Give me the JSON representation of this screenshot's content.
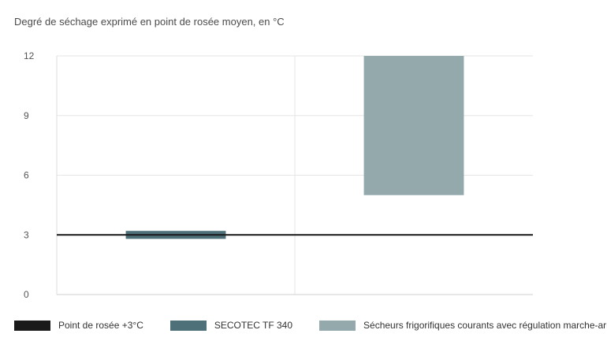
{
  "chart_data": {
    "type": "bar",
    "title": "Degré de séchage exprimé en point de rosée moyen, en °C",
    "xlabel": "",
    "ylabel": "",
    "ylim": [
      0,
      12
    ],
    "yticks": [
      "0",
      "3",
      "6",
      "9",
      "12"
    ],
    "grid": true,
    "legend_position": "bottom",
    "reference_line": {
      "name": "Point de rosée +3°C",
      "value": 3,
      "color": "#1a1a1a"
    },
    "series": [
      {
        "name": "SECOTEC TF 340",
        "low": 2.8,
        "high": 3.2,
        "color": "#4d7079"
      },
      {
        "name": "Sécheurs frigorifiques courants avec régulation marche-arrêt",
        "low": 5,
        "high": 12,
        "color": "#93a9ab"
      }
    ]
  }
}
